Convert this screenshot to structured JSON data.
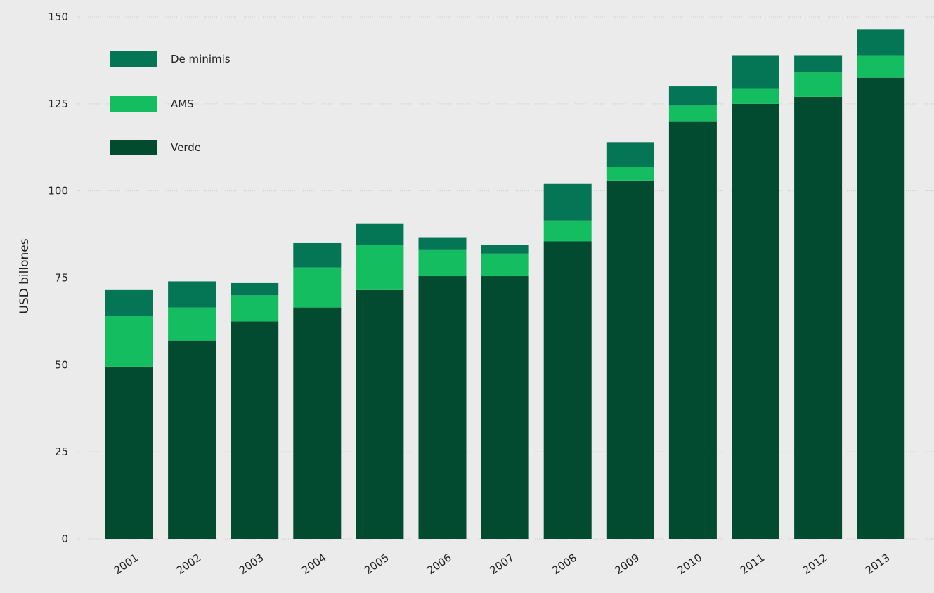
{
  "chart_data": {
    "type": "bar",
    "stacked": true,
    "title": "",
    "xlabel": "",
    "ylabel": "USD billones",
    "ylim": [
      0,
      150
    ],
    "yticks": [
      0,
      25,
      50,
      75,
      100,
      125,
      150
    ],
    "grid": true,
    "legend_position": "top-left",
    "categories": [
      "2001",
      "2002",
      "2003",
      "2004",
      "2005",
      "2006",
      "2007",
      "2008",
      "2009",
      "2010",
      "2011",
      "2012",
      "2013"
    ],
    "series": [
      {
        "name": "Verde",
        "color": "#024a30",
        "values": [
          49.5,
          57,
          62.5,
          66.5,
          71.5,
          75.5,
          75.5,
          85.5,
          103,
          120,
          125,
          127,
          132.5
        ]
      },
      {
        "name": "AMS",
        "color": "#14be60",
        "values": [
          14.5,
          9.5,
          7.5,
          11.5,
          13,
          7.5,
          6.5,
          6,
          4,
          4.5,
          4.5,
          7,
          6.5
        ]
      },
      {
        "name": "De minimis",
        "color": "#047655",
        "values": [
          7.5,
          7.5,
          3.5,
          7,
          6,
          3.5,
          2.5,
          10.5,
          7,
          5.5,
          9.5,
          5,
          7.5
        ]
      }
    ],
    "legend_order": [
      "De minimis",
      "AMS",
      "Verde"
    ]
  }
}
